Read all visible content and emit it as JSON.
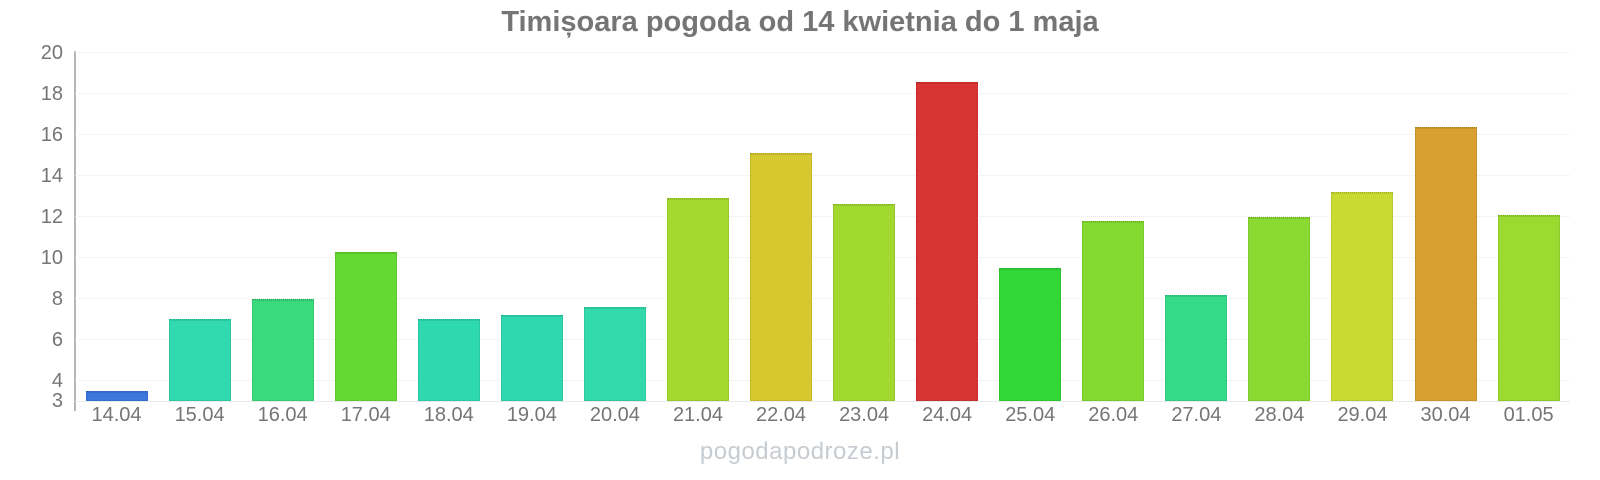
{
  "title": "Timișoara pogoda od 14 kwietnia do 1 maja",
  "watermark": "pogodapodroze.pl",
  "palette": {
    "title_text": "#757575",
    "axis_text": "#757575",
    "axis_line": "#b3b7bb",
    "gridline": "#e7e9eb",
    "watermark_text": "#c7ccd1",
    "background": "#ffffff"
  },
  "chart_data": {
    "type": "bar",
    "title": "Timișoara pogoda od 14 kwietnia do 1 maja",
    "xlabel": "",
    "ylabel": "",
    "categories": [
      "14.04",
      "15.04",
      "16.04",
      "17.04",
      "18.04",
      "19.04",
      "20.04",
      "21.04",
      "22.04",
      "23.04",
      "24.04",
      "25.04",
      "26.04",
      "27.04",
      "28.04",
      "29.04",
      "30.04",
      "01.05"
    ],
    "values": [
      3.5,
      7.0,
      8.0,
      10.3,
      7.0,
      7.2,
      7.6,
      12.9,
      15.1,
      12.6,
      18.6,
      9.5,
      11.8,
      8.2,
      12.0,
      13.2,
      16.4,
      12.1
    ],
    "bar_colors": [
      "#3b77dd",
      "#30d9ae",
      "#39da7b",
      "#63da31",
      "#2ed9b0",
      "#2ed9b0",
      "#31d9ab",
      "#a4d92f",
      "#d6c92f",
      "#a1d92f",
      "#d93434",
      "#31d737",
      "#84da31",
      "#35da88",
      "#8bda31",
      "#c9da31",
      "#d9a031",
      "#9bda31"
    ],
    "ylim": [
      3,
      20
    ],
    "yticks": [
      3,
      4,
      6,
      8,
      10,
      12,
      14,
      16,
      18,
      20
    ],
    "grid": "horizontal-dotted",
    "legend": "none",
    "units": "°C"
  }
}
